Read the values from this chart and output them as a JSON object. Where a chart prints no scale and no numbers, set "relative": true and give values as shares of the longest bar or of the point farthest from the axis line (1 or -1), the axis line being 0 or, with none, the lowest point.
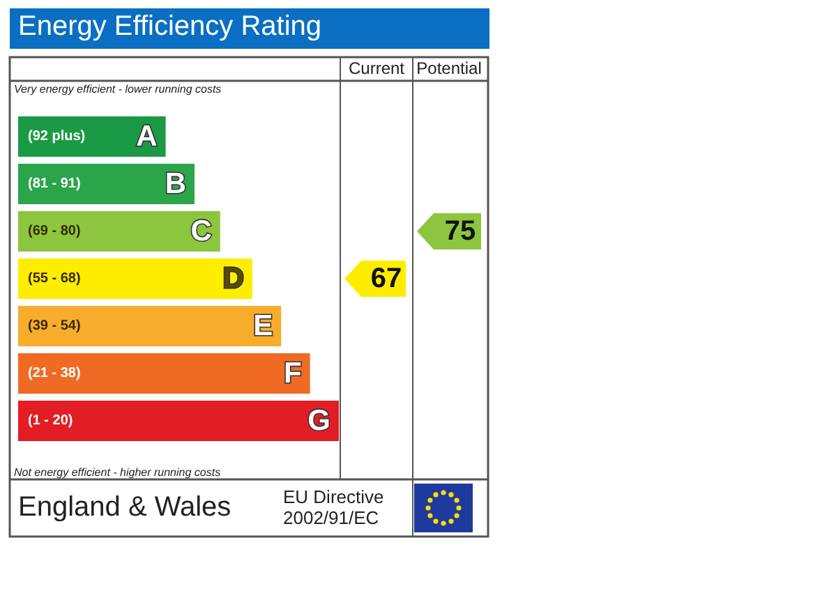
{
  "chart_data": {
    "type": "bar",
    "orientation": "horizontal",
    "relative": true,
    "title": "Energy Efficiency Rating",
    "categories": [
      "(92 plus)",
      "(81 - 91)",
      "(69 - 80)",
      "(55 - 68)",
      "(39 - 54)",
      "(21 - 38)",
      "(1 - 20)"
    ],
    "values": [
      0.46,
      0.55,
      0.63,
      0.73,
      0.82,
      0.91,
      1
    ],
    "colors": [
      "#1b9a46",
      "#2ba54a",
      "#8cc63e",
      "#ffed00",
      "#f7ad2b",
      "#ef6b24",
      "#e31d24"
    ],
    "annotations": [
      "Current",
      "Potential",
      "67",
      "75",
      "Very energy efficient - lower running costs",
      "Not energy efficient - higher running costs",
      "England & Wales",
      "EU Directive 2002/91/EC",
      "A",
      "B",
      "C",
      "D",
      "E",
      "F",
      "G"
    ]
  }
}
